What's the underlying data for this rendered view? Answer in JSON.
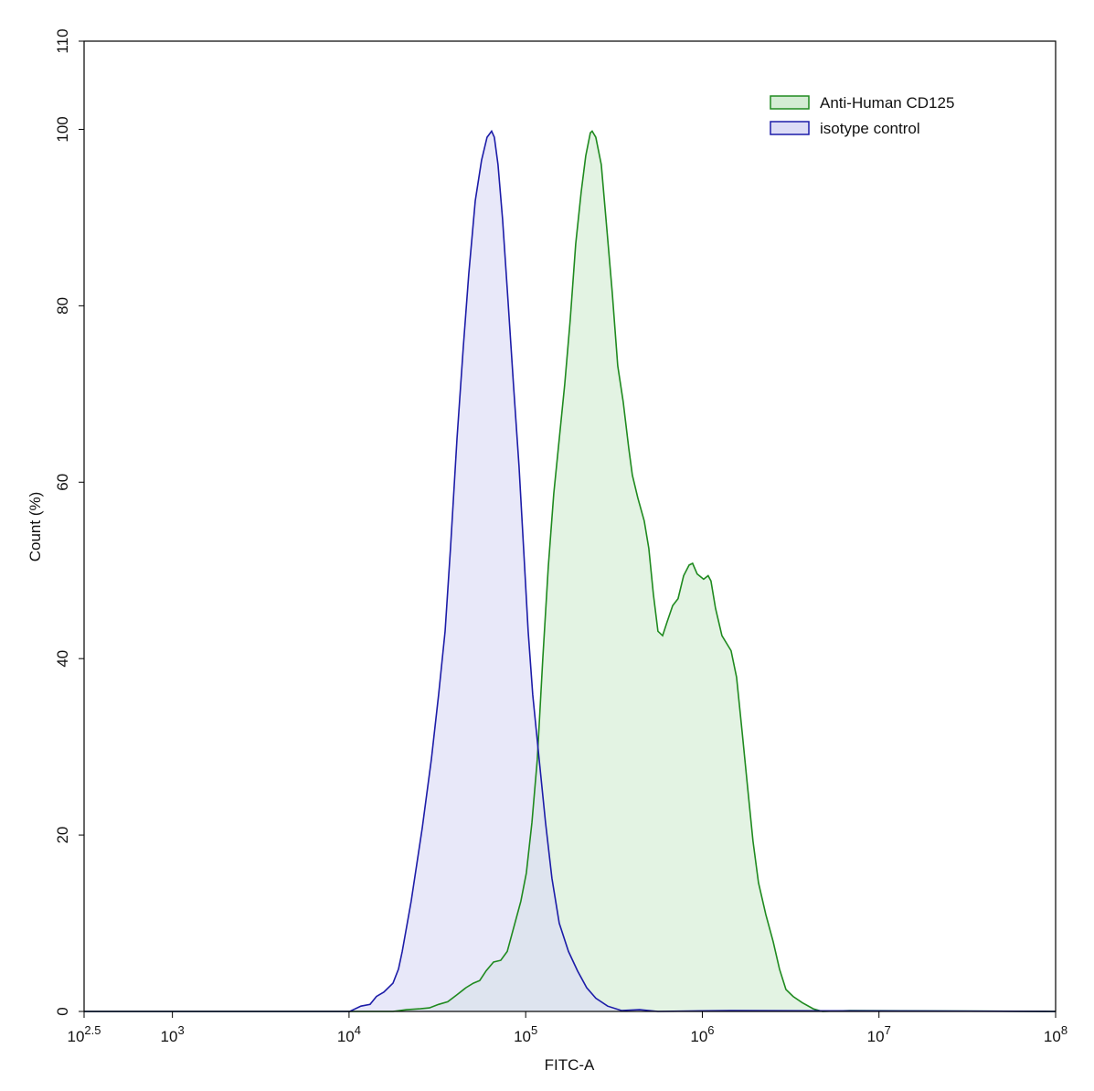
{
  "chart_data": {
    "type": "histogram-overlay",
    "xlabel": "FITC-A",
    "ylabel": "Count  (%)",
    "xscale": "log",
    "xlim": [
      316.23,
      100000000
    ],
    "ylim": [
      0,
      110
    ],
    "xticks": [
      {
        "value": 316.23,
        "label": "10^2.5"
      },
      {
        "value": 1000,
        "label": "10^3"
      },
      {
        "value": 10000,
        "label": "10^4"
      },
      {
        "value": 100000,
        "label": "10^5"
      },
      {
        "value": 1000000,
        "label": "10^6"
      },
      {
        "value": 10000000,
        "label": "10^7"
      },
      {
        "value": 100000000,
        "label": "10^8"
      }
    ],
    "yticks": [
      0,
      20,
      40,
      60,
      80,
      100,
      110
    ],
    "legend": "upper right",
    "series": [
      {
        "name": "Anti-Human CD125",
        "color": "#1f8a1f",
        "fill": "#d4ecd4",
        "x": [
          316.23,
          17740,
          21190,
          25330,
          28540,
          32150,
          36220,
          40810,
          45950,
          50560,
          54950,
          59700,
          65730,
          72280,
          78590,
          85310,
          93950,
          100900,
          108400,
          116400,
          125000,
          134300,
          144200,
          154900,
          166400,
          178700,
          191900,
          206100,
          218800,
          232300,
          237700,
          249500,
          267900,
          287700,
          309000,
          331900,
          356500,
          382800,
          401800,
          431500,
          468800,
          497700,
          528400,
          561000,
          595600,
          632400,
          679200,
          729200,
          783400,
          841400,
          881000,
          935400,
          1017000,
          1079000,
          1119000,
          1188000,
          1291000,
          1455000,
          1563000,
          1679000,
          1803000,
          1936000,
          2080000,
          2286000,
          2518000,
          2735000,
          2972000,
          3266000,
          3681000,
          4246000,
          4786000,
          6839000,
          100000000
        ],
        "values": [
          0,
          0,
          0.2,
          0.3,
          0.4,
          0.8,
          1.1,
          1.9,
          2.7,
          3.2,
          3.5,
          4.6,
          5.6,
          5.8,
          6.8,
          9.4,
          12.5,
          15.7,
          21.4,
          28.6,
          40,
          50.4,
          58.7,
          64.9,
          71.1,
          78.4,
          87,
          92.9,
          97,
          99.6,
          99.8,
          99.1,
          96,
          88.8,
          81.5,
          73.2,
          69.1,
          63.9,
          60.8,
          58.2,
          55.6,
          52.5,
          47.3,
          43.1,
          42.6,
          44.2,
          46,
          46.8,
          49.4,
          50.6,
          50.8,
          49.6,
          49,
          49.4,
          48.8,
          45.7,
          42.6,
          40.9,
          37.9,
          31.7,
          25.5,
          19.3,
          14.6,
          11,
          7.9,
          4.8,
          2.5,
          1.7,
          1,
          0.3,
          0,
          0.1,
          0
        ]
      },
      {
        "name": "isotype control",
        "color": "#1c1ca8",
        "fill": "#dcdcf6",
        "x": [
          316.23,
          10100,
          11680,
          13150,
          14300,
          15740,
          17740,
          19050,
          20000,
          22490,
          25950,
          29240,
          32150,
          34960,
          37540,
          40810,
          44350,
          47640,
          51800,
          56230,
          60420,
          64140,
          66500,
          69740,
          73960,
          79430,
          85310,
          91720,
          97270,
          103300,
          109600,
          119200,
          129600,
          140800,
          154900,
          174600,
          196600,
          221300,
          249500,
          291100,
          348300,
          441600,
          561000,
          1455000,
          100000000
        ],
        "values": [
          0,
          0,
          0.6,
          0.8,
          1.7,
          2.2,
          3.2,
          4.8,
          6.8,
          12.5,
          20.8,
          28.6,
          35.9,
          43.1,
          52.5,
          64.9,
          75.3,
          83.6,
          91.9,
          96.5,
          99.1,
          99.8,
          99.1,
          96,
          89.8,
          80.5,
          71.1,
          61.8,
          52.5,
          43.1,
          35.9,
          28.6,
          21.4,
          15.1,
          10,
          6.8,
          4.6,
          2.7,
          1.5,
          0.6,
          0.1,
          0.2,
          0,
          0.1,
          0
        ]
      }
    ]
  }
}
